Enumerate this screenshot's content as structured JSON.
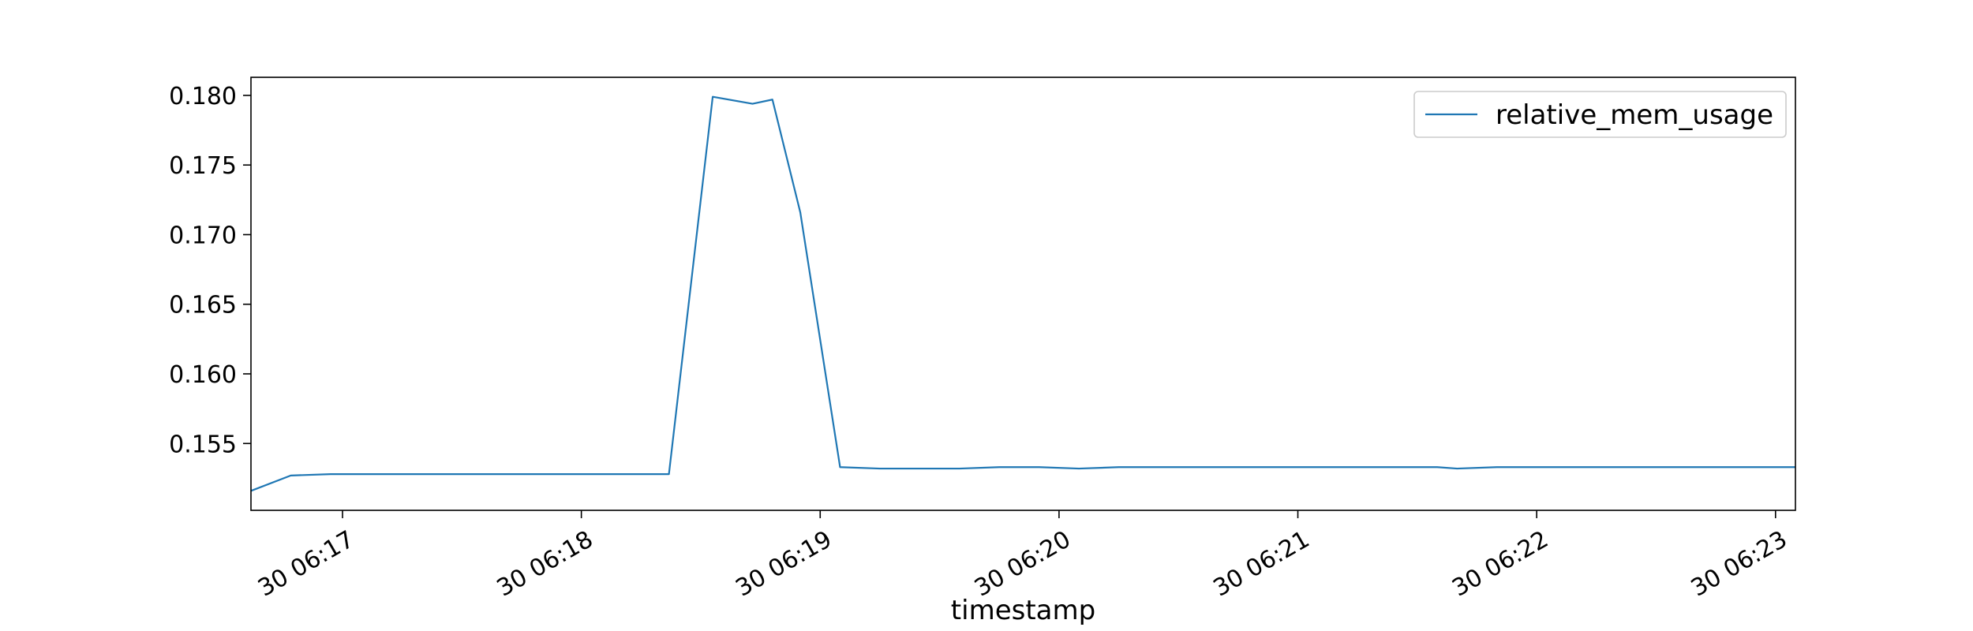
{
  "chart_data": {
    "type": "line",
    "title": "",
    "xlabel": "timestamp",
    "ylabel": "",
    "x": [
      "06:16:37",
      "06:16:47",
      "06:16:57",
      "06:17:07",
      "06:17:17",
      "06:17:27",
      "06:17:37",
      "06:17:47",
      "06:17:57",
      "06:18:07",
      "06:18:17",
      "06:18:22",
      "06:18:33",
      "06:18:43",
      "06:18:48",
      "06:18:55",
      "06:19:05",
      "06:19:15",
      "06:19:25",
      "06:19:35",
      "06:19:45",
      "06:19:55",
      "06:20:05",
      "06:20:15",
      "06:20:25",
      "06:20:35",
      "06:20:45",
      "06:20:55",
      "06:21:05",
      "06:21:15",
      "06:21:25",
      "06:21:35",
      "06:21:40",
      "06:21:50",
      "06:22:00",
      "06:22:10",
      "06:22:20",
      "06:22:30",
      "06:22:40",
      "06:22:50",
      "06:23:00",
      "06:23:05"
    ],
    "series": [
      {
        "name": "relative_mem_usage",
        "color": "#1f77b4",
        "values": [
          0.1516,
          0.1527,
          0.1528,
          0.1528,
          0.1528,
          0.1528,
          0.1528,
          0.1528,
          0.1528,
          0.1528,
          0.1528,
          0.1528,
          0.1799,
          0.1794,
          0.1797,
          0.1716,
          0.1533,
          0.1532,
          0.1532,
          0.1532,
          0.1533,
          0.1533,
          0.1532,
          0.1533,
          0.1533,
          0.1533,
          0.1533,
          0.1533,
          0.1533,
          0.1533,
          0.1533,
          0.1533,
          0.1532,
          0.1533,
          0.1533,
          0.1533,
          0.1533,
          0.1533,
          0.1533,
          0.1533,
          0.1533,
          0.1533
        ]
      }
    ],
    "xlim": [
      "06:16:37",
      "06:23:05"
    ],
    "ylim": [
      0.1502,
      0.1813
    ],
    "x_ticks": [
      "06:17:00",
      "06:18:00",
      "06:19:00",
      "06:20:00",
      "06:21:00",
      "06:22:00",
      "06:23:00"
    ],
    "x_tick_labels": [
      "30 06:17",
      "30 06:18",
      "30 06:19",
      "30 06:20",
      "30 06:21",
      "30 06:22",
      "30 06:23"
    ],
    "y_ticks": [
      0.155,
      0.16,
      0.165,
      0.17,
      0.175,
      0.18
    ],
    "y_tick_labels": [
      "0.155",
      "0.160",
      "0.165",
      "0.170",
      "0.175",
      "0.180"
    ],
    "grid": false,
    "legend_position": "top-right"
  }
}
